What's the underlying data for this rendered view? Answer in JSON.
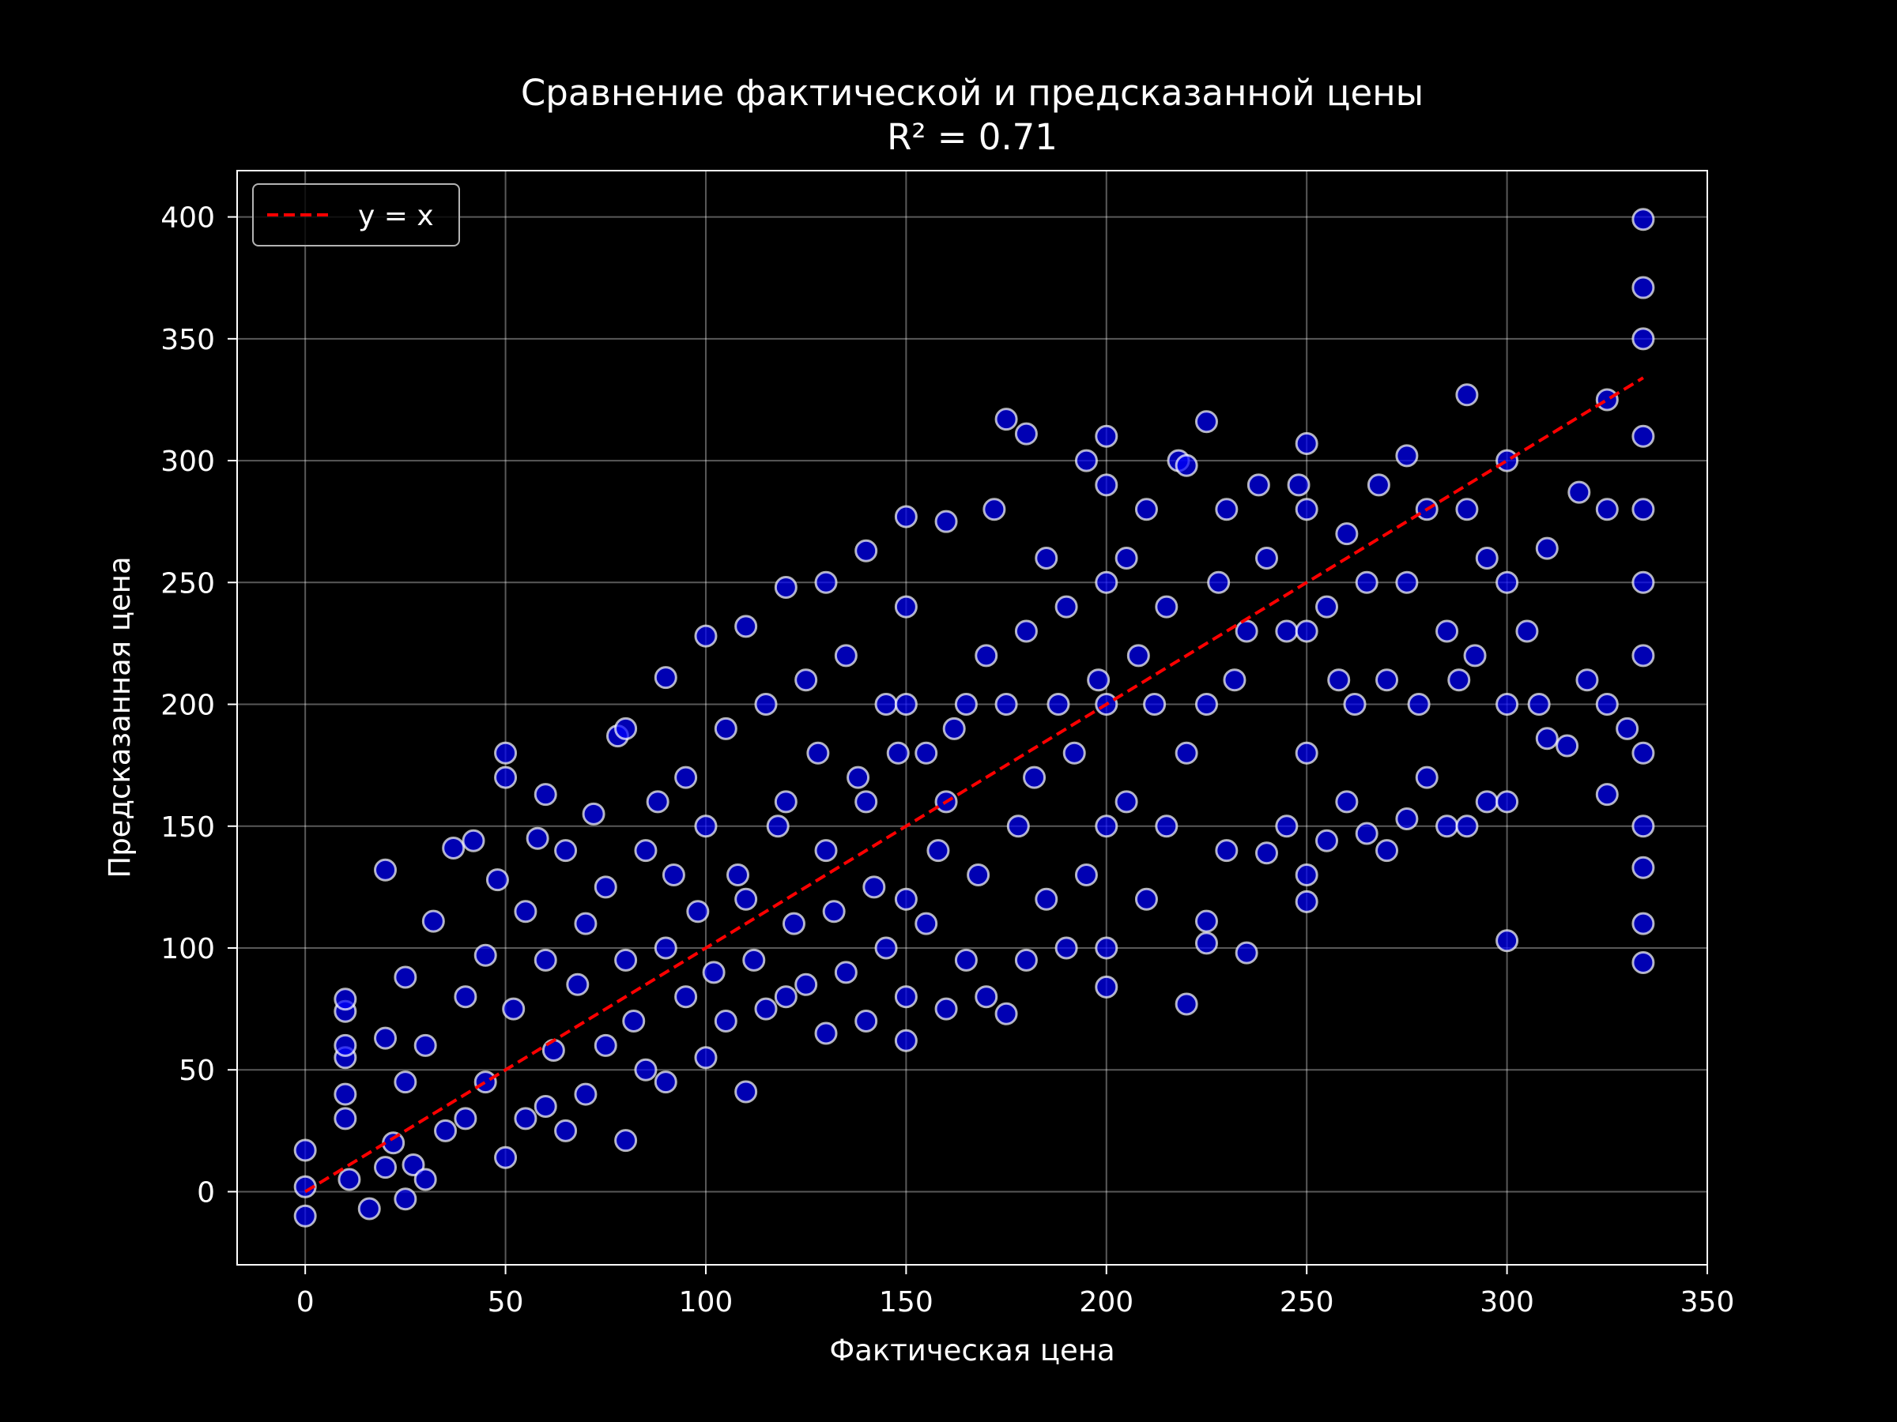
{
  "chart_data": {
    "type": "scatter",
    "title": "Сравнение фактической и предсказанной цены",
    "subtitle": "R² = 0.71",
    "xlabel": "Фактическая цена",
    "ylabel": "Предсказанная цена",
    "xlim": [
      -17,
      350
    ],
    "ylim": [
      -30,
      419
    ],
    "xticks": [
      0,
      50,
      100,
      150,
      200,
      250,
      300,
      350
    ],
    "yticks": [
      0,
      50,
      100,
      150,
      200,
      250,
      300,
      350,
      400
    ],
    "grid": true,
    "legend": {
      "placement": "top-left",
      "entries": [
        {
          "label": "y = x",
          "style": "dashed",
          "color": "#ff0000"
        }
      ]
    },
    "reference_line": {
      "label": "y = x",
      "x": [
        0,
        334
      ],
      "y": [
        0,
        334
      ],
      "color": "#ff0000",
      "style": "dashed"
    },
    "marker": {
      "face": "#0000ff",
      "edge": "#ffffff",
      "alpha": 0.7
    },
    "series": [
      {
        "x": [
          0,
          0,
          0,
          10,
          10,
          10,
          10,
          10,
          10,
          11,
          16,
          20,
          20,
          20,
          22,
          25,
          25,
          25,
          27,
          30,
          30,
          32,
          35,
          37,
          40,
          40,
          42,
          45,
          45,
          48,
          50,
          50,
          50,
          52,
          55,
          55,
          58,
          60,
          60,
          60,
          62,
          65,
          65,
          68,
          70,
          70,
          72,
          75,
          75,
          78,
          80,
          80,
          80,
          82,
          85,
          85,
          88,
          90,
          90,
          90,
          92,
          95,
          95,
          98,
          100,
          100,
          100,
          102,
          105,
          105,
          108,
          110,
          110,
          110,
          112,
          115,
          115,
          118,
          120,
          120,
          120,
          122,
          125,
          125,
          128,
          130,
          130,
          130,
          132,
          135,
          135,
          138,
          140,
          140,
          140,
          142,
          145,
          145,
          148,
          150,
          150,
          150,
          150,
          150,
          150,
          155,
          155,
          158,
          160,
          160,
          160,
          162,
          165,
          165,
          168,
          170,
          170,
          172,
          175,
          175,
          175,
          178,
          180,
          180,
          180,
          182,
          185,
          185,
          188,
          190,
          190,
          192,
          195,
          195,
          198,
          200,
          200,
          200,
          200,
          200,
          200,
          200,
          205,
          205,
          208,
          210,
          210,
          212,
          215,
          215,
          218,
          220,
          220,
          220,
          225,
          225,
          225,
          225,
          228,
          230,
          230,
          232,
          235,
          235,
          238,
          240,
          240,
          245,
          245,
          248,
          250,
          250,
          250,
          250,
          250,
          250,
          255,
          255,
          258,
          260,
          260,
          262,
          265,
          265,
          268,
          270,
          270,
          275,
          275,
          275,
          278,
          280,
          280,
          285,
          285,
          288,
          290,
          290,
          290,
          292,
          295,
          295,
          300,
          300,
          300,
          300,
          300,
          305,
          308,
          310,
          310,
          315,
          318,
          320,
          325,
          325,
          325,
          325,
          330,
          334,
          334,
          334,
          334,
          334,
          334,
          334,
          334,
          334,
          334,
          334,
          334
        ],
        "y": [
          -10,
          2,
          17,
          30,
          40,
          55,
          60,
          74,
          79,
          5,
          -7,
          10,
          63,
          132,
          20,
          -3,
          45,
          88,
          11,
          5,
          60,
          111,
          25,
          141,
          30,
          80,
          144,
          45,
          97,
          128,
          14,
          170,
          180,
          75,
          30,
          115,
          145,
          35,
          95,
          163,
          58,
          25,
          140,
          85,
          40,
          110,
          155,
          60,
          125,
          187,
          21,
          95,
          190,
          70,
          50,
          140,
          160,
          45,
          100,
          211,
          130,
          80,
          170,
          115,
          55,
          150,
          228,
          90,
          70,
          190,
          130,
          41,
          120,
          232,
          95,
          75,
          200,
          150,
          80,
          160,
          248,
          110,
          85,
          210,
          180,
          65,
          140,
          250,
          115,
          90,
          220,
          170,
          70,
          160,
          263,
          125,
          100,
          200,
          180,
          62,
          80,
          120,
          200,
          240,
          277,
          110,
          180,
          140,
          75,
          160,
          275,
          190,
          95,
          200,
          130,
          80,
          220,
          280,
          73,
          200,
          317,
          150,
          95,
          230,
          311,
          170,
          120,
          260,
          200,
          100,
          240,
          180,
          130,
          300,
          210,
          84,
          100,
          150,
          200,
          250,
          290,
          310,
          160,
          260,
          220,
          120,
          280,
          200,
          150,
          240,
          300,
          77,
          180,
          298,
          102,
          111,
          200,
          316,
          250,
          140,
          280,
          210,
          98,
          230,
          290,
          139,
          260,
          150,
          230,
          290,
          119,
          130,
          180,
          230,
          280,
          307,
          144,
          240,
          210,
          160,
          270,
          200,
          147,
          250,
          290,
          140,
          210,
          153,
          250,
          302,
          200,
          170,
          280,
          150,
          230,
          210,
          150,
          280,
          327,
          220,
          160,
          260,
          103,
          160,
          200,
          250,
          300,
          230,
          200,
          186,
          264,
          183,
          287,
          210,
          163,
          200,
          280,
          325,
          190,
          94,
          110,
          133,
          150,
          180,
          220,
          250,
          280,
          310,
          350,
          371,
          399
        ]
      }
    ]
  }
}
